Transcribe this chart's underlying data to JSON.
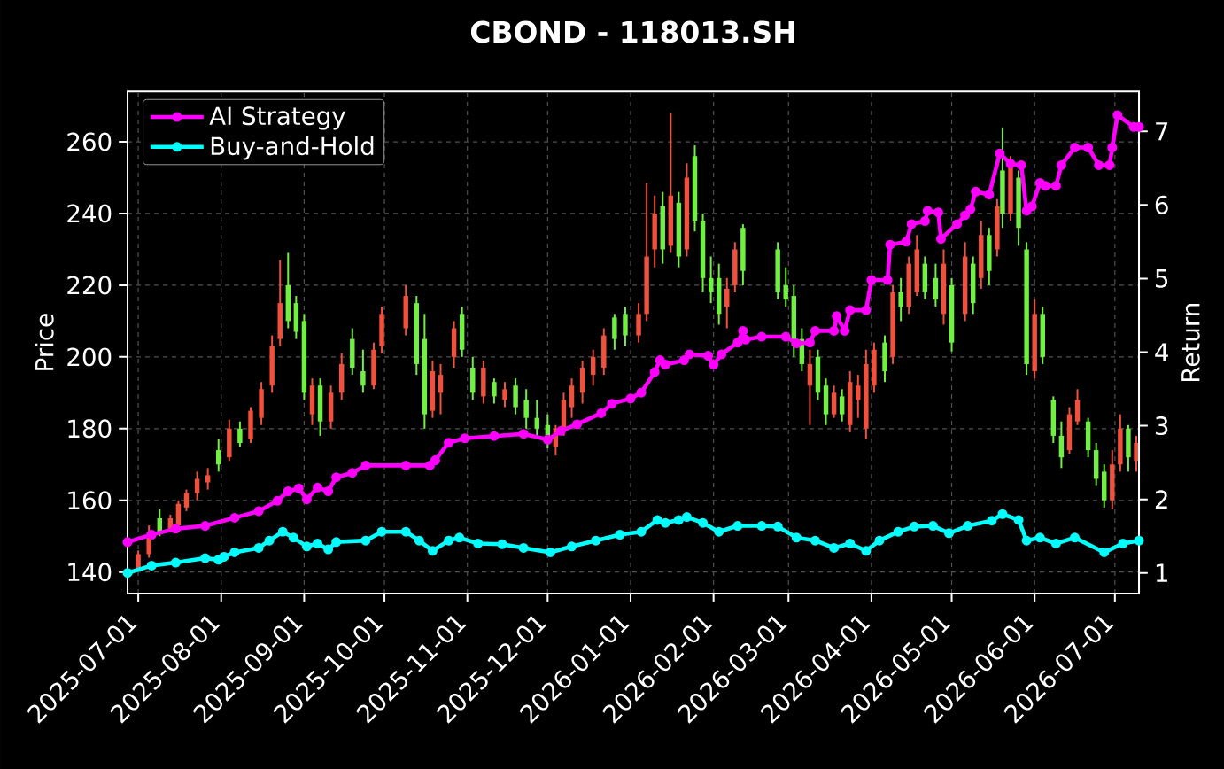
{
  "chart_data": {
    "type": "candlestick",
    "title": "CBOND - 118013.SH",
    "ylabel": "Price",
    "y2label": "Return",
    "x": [
      "2025-07-01",
      "2025-07-05",
      "2025-07-09",
      "2025-07-13",
      "2025-07-16",
      "2025-07-19",
      "2025-07-23",
      "2025-07-27",
      "2025-07-31",
      "2025-08-04",
      "2025-08-08",
      "2025-08-12",
      "2025-08-16",
      "2025-08-20",
      "2025-08-23",
      "2025-08-26",
      "2025-08-29",
      "2025-09-01",
      "2025-09-04",
      "2025-09-07",
      "2025-09-11",
      "2025-09-15",
      "2025-09-19",
      "2025-09-23",
      "2025-09-27",
      "2025-09-30",
      "2025-10-09",
      "2025-10-13",
      "2025-10-16",
      "2025-10-19",
      "2025-10-22",
      "2025-10-27",
      "2025-10-30",
      "2025-11-03",
      "2025-11-07",
      "2025-11-11",
      "2025-11-15",
      "2025-11-19",
      "2025-11-23",
      "2025-11-27",
      "2025-12-01",
      "2025-12-04",
      "2025-12-07",
      "2025-12-10",
      "2025-12-14",
      "2025-12-18",
      "2025-12-22",
      "2025-12-26",
      "2025-12-30",
      "2026-01-04",
      "2026-01-07",
      "2026-01-10",
      "2026-01-13",
      "2026-01-16",
      "2026-01-19",
      "2026-01-22",
      "2026-01-25",
      "2026-01-28",
      "2026-01-31",
      "2026-02-03",
      "2026-02-06",
      "2026-02-09",
      "2026-02-12",
      "2026-02-25",
      "2026-02-28",
      "2026-03-03",
      "2026-03-06",
      "2026-03-09",
      "2026-03-12",
      "2026-03-15",
      "2026-03-18",
      "2026-03-21",
      "2026-03-24",
      "2026-03-27",
      "2026-03-30",
      "2026-04-02",
      "2026-04-06",
      "2026-04-09",
      "2026-04-12",
      "2026-04-15",
      "2026-04-18",
      "2026-04-21",
      "2026-04-25",
      "2026-04-28",
      "2026-05-01",
      "2026-05-06",
      "2026-05-09",
      "2026-05-12",
      "2026-05-15",
      "2026-05-18",
      "2026-05-20",
      "2026-05-23",
      "2026-05-26",
      "2026-05-29",
      "2026-06-01",
      "2026-06-04",
      "2026-06-08",
      "2026-06-11",
      "2026-06-14",
      "2026-06-17",
      "2026-06-21",
      "2026-06-24",
      "2026-06-27",
      "2026-06-30",
      "2026-07-03",
      "2026-07-06",
      "2026-07-09"
    ],
    "ohlc": [
      [
        141,
        146,
        140.5,
        145
      ],
      [
        145,
        153,
        144,
        151
      ],
      [
        155,
        157.5,
        150,
        151
      ],
      [
        152,
        156,
        151,
        155
      ],
      [
        153,
        160,
        152,
        159
      ],
      [
        158,
        163,
        157,
        162
      ],
      [
        162,
        168,
        160,
        166
      ],
      [
        165,
        169,
        163,
        167
      ],
      [
        174,
        177,
        168,
        170
      ],
      [
        172,
        182.5,
        171,
        180
      ],
      [
        180,
        182,
        175,
        176
      ],
      [
        177,
        186,
        176,
        185
      ],
      [
        183,
        193,
        181,
        191
      ],
      [
        192,
        206,
        190,
        203
      ],
      [
        205,
        227,
        203,
        215
      ],
      [
        220,
        229,
        208,
        210
      ],
      [
        215,
        217,
        205,
        207
      ],
      [
        210,
        212,
        188,
        190
      ],
      [
        184,
        194,
        181,
        192
      ],
      [
        192,
        194,
        178,
        182
      ],
      [
        182,
        192,
        180,
        190
      ],
      [
        190,
        201,
        188,
        198
      ],
      [
        205,
        208,
        195,
        197
      ],
      [
        196,
        202,
        190,
        192
      ],
      [
        192,
        204,
        191,
        202
      ],
      [
        203,
        214,
        201,
        212
      ],
      [
        208,
        220,
        206,
        217
      ],
      [
        215,
        217,
        195,
        198
      ],
      [
        205,
        212,
        180,
        184
      ],
      [
        185,
        199,
        183,
        196
      ],
      [
        190,
        198,
        184,
        195
      ],
      [
        200,
        210,
        197,
        208
      ],
      [
        212,
        214,
        200,
        202
      ],
      [
        197,
        200,
        188,
        190
      ],
      [
        189,
        199,
        187,
        197
      ],
      [
        193,
        194,
        187,
        189
      ],
      [
        188,
        193,
        186,
        191
      ],
      [
        192,
        194,
        184,
        186
      ],
      [
        188,
        191,
        180,
        183
      ],
      [
        183,
        188,
        178,
        180
      ],
      [
        181,
        184,
        174.5,
        176
      ],
      [
        175,
        181,
        172.5,
        180
      ],
      [
        180,
        190,
        178,
        188
      ],
      [
        186,
        194,
        183,
        192
      ],
      [
        190,
        199,
        187,
        197
      ],
      [
        195,
        202,
        192,
        200
      ],
      [
        197,
        208,
        195,
        206
      ],
      [
        211,
        212,
        202,
        205
      ],
      [
        212,
        214,
        203,
        206
      ],
      [
        206,
        215,
        204,
        212
      ],
      [
        212,
        248.5,
        210,
        228
      ],
      [
        230,
        245,
        225,
        240
      ],
      [
        242,
        246,
        226,
        230
      ],
      [
        231,
        268,
        229,
        245
      ],
      [
        243,
        246,
        225,
        228
      ],
      [
        230,
        254,
        228,
        250
      ],
      [
        256,
        259,
        235,
        238
      ],
      [
        238,
        240,
        218,
        222
      ],
      [
        222,
        228,
        215,
        218
      ],
      [
        222,
        226,
        209,
        212
      ],
      [
        214,
        222,
        208,
        219
      ],
      [
        220,
        232,
        218,
        230
      ],
      [
        236,
        237,
        220,
        224
      ],
      [
        230,
        232,
        216,
        218
      ],
      [
        220,
        225,
        214,
        216
      ],
      [
        217,
        220,
        200,
        203
      ],
      [
        205,
        208,
        196,
        198
      ],
      [
        192,
        202,
        181,
        198
      ],
      [
        200,
        202,
        188,
        190
      ],
      [
        192,
        194,
        181,
        184
      ],
      [
        184,
        192,
        183,
        190
      ],
      [
        189,
        191,
        182,
        184
      ],
      [
        181,
        196,
        179,
        193
      ],
      [
        188,
        195,
        183,
        192
      ],
      [
        180,
        202,
        177,
        198
      ],
      [
        192,
        204,
        190,
        202
      ],
      [
        204,
        206,
        193,
        196
      ],
      [
        200,
        220,
        198,
        218
      ],
      [
        218,
        222,
        210,
        214
      ],
      [
        214,
        228,
        212,
        226
      ],
      [
        218,
        234,
        217,
        230
      ],
      [
        226,
        228,
        216,
        218
      ],
      [
        222,
        226,
        214,
        216
      ],
      [
        212,
        230,
        209,
        226
      ],
      [
        220,
        222,
        201.5,
        204
      ],
      [
        212,
        232,
        210,
        228
      ],
      [
        226,
        228,
        212,
        215
      ],
      [
        222,
        238,
        219,
        234
      ],
      [
        234,
        236,
        220,
        224
      ],
      [
        230,
        244,
        228,
        242
      ],
      [
        252,
        264,
        236,
        240
      ],
      [
        240,
        256,
        238,
        254
      ],
      [
        250,
        252,
        231,
        236
      ],
      [
        230,
        232,
        195,
        198
      ],
      [
        196,
        216,
        194,
        212
      ],
      [
        212,
        214,
        198,
        200
      ],
      [
        188,
        189,
        176,
        178
      ],
      [
        178,
        182,
        169,
        172
      ],
      [
        174,
        186,
        173,
        184
      ],
      [
        182,
        191,
        181,
        188
      ],
      [
        182,
        183,
        172,
        174
      ],
      [
        174,
        176,
        164,
        166
      ],
      [
        168,
        170,
        158,
        160
      ],
      [
        160,
        174,
        157.5,
        170
      ],
      [
        170,
        184,
        168,
        180
      ],
      [
        180,
        181,
        168,
        172
      ],
      [
        171,
        178,
        168,
        176
      ]
    ],
    "colors": [
      "#f0503c",
      "#f0503c",
      "#70f040",
      "#f0503c",
      "#f0503c",
      "#f0503c",
      "#f0503c",
      "#f0503c",
      "#70f040",
      "#f0503c",
      "#70f040",
      "#f0503c",
      "#f0503c",
      "#f0503c",
      "#f0503c",
      "#70f040",
      "#70f040",
      "#70f040",
      "#f0503c",
      "#70f040",
      "#f0503c",
      "#f0503c",
      "#70f040",
      "#70f040",
      "#f0503c",
      "#f0503c",
      "#f0503c",
      "#70f040",
      "#70f040",
      "#f0503c",
      "#f0503c",
      "#f0503c",
      "#70f040",
      "#70f040",
      "#f0503c",
      "#70f040",
      "#f0503c",
      "#70f040",
      "#70f040",
      "#70f040",
      "#70f040",
      "#f0503c",
      "#f0503c",
      "#f0503c",
      "#f0503c",
      "#f0503c",
      "#f0503c",
      "#70f040",
      "#70f040",
      "#f0503c",
      "#f0503c",
      "#f0503c",
      "#70f040",
      "#f0503c",
      "#70f040",
      "#f0503c",
      "#70f040",
      "#70f040",
      "#70f040",
      "#70f040",
      "#f0503c",
      "#f0503c",
      "#70f040",
      "#70f040",
      "#70f040",
      "#70f040",
      "#70f040",
      "#f0503c",
      "#70f040",
      "#70f040",
      "#f0503c",
      "#70f040",
      "#f0503c",
      "#f0503c",
      "#f0503c",
      "#f0503c",
      "#70f040",
      "#f0503c",
      "#70f040",
      "#f0503c",
      "#f0503c",
      "#70f040",
      "#70f040",
      "#f0503c",
      "#70f040",
      "#f0503c",
      "#70f040",
      "#f0503c",
      "#70f040",
      "#f0503c",
      "#70f040",
      "#f0503c",
      "#70f040",
      "#70f040",
      "#f0503c",
      "#70f040",
      "#70f040",
      "#70f040",
      "#f0503c",
      "#f0503c",
      "#70f040",
      "#70f040",
      "#70f040",
      "#f0503c",
      "#f0503c",
      "#70f040",
      "#f0503c"
    ],
    "series": [
      {
        "name": "AI Strategy",
        "type": "line",
        "axis": "y2",
        "color": "#ff00ff",
        "x": [
          "2025-06-27",
          "2025-07-06",
          "2025-07-15",
          "2025-07-26",
          "2025-08-06",
          "2025-08-15",
          "2025-08-22",
          "2025-08-26",
          "2025-08-30",
          "2025-09-02",
          "2025-09-06",
          "2025-09-10",
          "2025-09-13",
          "2025-09-19",
          "2025-09-24",
          "2025-10-09",
          "2025-10-18",
          "2025-10-20",
          "2025-10-25",
          "2025-10-31",
          "2025-11-11",
          "2025-11-22",
          "2025-12-01",
          "2025-12-06",
          "2025-12-12",
          "2025-12-21",
          "2025-12-25",
          "2026-01-01",
          "2026-01-05",
          "2026-01-10",
          "2026-01-12",
          "2026-01-14",
          "2026-01-21",
          "2026-01-23",
          "2026-01-30",
          "2026-02-01",
          "2026-02-04",
          "2026-02-10",
          "2026-02-12",
          "2026-02-13",
          "2026-02-19",
          "2026-02-28",
          "2026-03-04",
          "2026-03-09",
          "2026-03-11",
          "2026-03-18",
          "2026-03-19",
          "2026-03-22",
          "2026-03-24",
          "2026-03-30",
          "2026-04-01",
          "2026-04-07",
          "2026-04-08",
          "2026-04-14",
          "2026-04-16",
          "2026-04-21",
          "2026-04-22",
          "2026-04-26",
          "2026-04-27",
          "2026-05-03",
          "2026-05-06",
          "2026-05-08",
          "2026-05-10",
          "2026-05-15",
          "2026-05-19",
          "2026-05-23",
          "2026-05-27",
          "2026-05-29",
          "2026-05-31",
          "2026-06-03",
          "2026-06-05",
          "2026-06-09",
          "2026-06-11",
          "2026-06-16",
          "2026-06-21",
          "2026-06-25",
          "2026-06-29",
          "2026-06-30",
          "2026-07-02",
          "2026-07-08",
          "2026-07-10"
        ],
        "values": [
          1.42,
          1.52,
          1.6,
          1.64,
          1.75,
          1.84,
          1.98,
          2.11,
          2.15,
          2.0,
          2.16,
          2.11,
          2.3,
          2.36,
          2.46,
          2.46,
          2.46,
          2.53,
          2.77,
          2.83,
          2.86,
          2.89,
          2.81,
          2.93,
          3.02,
          3.17,
          3.3,
          3.37,
          3.45,
          3.73,
          3.89,
          3.83,
          3.89,
          3.97,
          3.95,
          3.83,
          3.97,
          4.13,
          4.29,
          4.17,
          4.21,
          4.21,
          4.12,
          4.13,
          4.29,
          4.29,
          4.49,
          4.29,
          4.57,
          4.57,
          4.98,
          4.98,
          5.46,
          5.5,
          5.74,
          5.78,
          5.92,
          5.9,
          5.54,
          5.74,
          5.86,
          5.94,
          6.18,
          6.14,
          6.7,
          6.56,
          6.54,
          5.92,
          5.98,
          6.3,
          6.26,
          6.26,
          6.54,
          6.78,
          6.78,
          6.54,
          6.54,
          6.78,
          7.22,
          7.06,
          7.06
        ]
      },
      {
        "name": "Buy-and-Hold",
        "type": "line",
        "axis": "y2",
        "color": "#00ffff",
        "x": [
          "2025-06-27",
          "2025-07-06",
          "2025-07-15",
          "2025-07-26",
          "2025-07-31",
          "2025-08-02",
          "2025-08-06",
          "2025-08-15",
          "2025-08-19",
          "2025-08-24",
          "2025-08-28",
          "2025-09-02",
          "2025-09-06",
          "2025-09-10",
          "2025-09-13",
          "2025-09-24",
          "2025-09-30",
          "2025-10-09",
          "2025-10-14",
          "2025-10-19",
          "2025-10-25",
          "2025-10-29",
          "2025-11-05",
          "2025-11-14",
          "2025-11-22",
          "2025-12-02",
          "2025-12-10",
          "2025-12-19",
          "2025-12-28",
          "2026-01-05",
          "2026-01-11",
          "2026-01-14",
          "2026-01-19",
          "2026-01-22",
          "2026-01-28",
          "2026-02-03",
          "2026-02-10",
          "2026-02-19",
          "2026-02-25",
          "2026-03-04",
          "2026-03-11",
          "2026-03-18",
          "2026-03-24",
          "2026-03-30",
          "2026-04-04",
          "2026-04-11",
          "2026-04-17",
          "2026-04-24",
          "2026-04-30",
          "2026-05-07",
          "2026-05-16",
          "2026-05-20",
          "2026-05-26",
          "2026-05-29",
          "2026-06-03",
          "2026-06-09",
          "2026-06-16",
          "2026-06-27",
          "2026-07-04",
          "2026-07-10"
        ],
        "values": [
          1.0,
          1.1,
          1.14,
          1.2,
          1.18,
          1.22,
          1.28,
          1.34,
          1.44,
          1.56,
          1.48,
          1.36,
          1.4,
          1.32,
          1.42,
          1.44,
          1.56,
          1.56,
          1.44,
          1.3,
          1.44,
          1.48,
          1.4,
          1.39,
          1.34,
          1.28,
          1.36,
          1.44,
          1.52,
          1.56,
          1.72,
          1.68,
          1.72,
          1.76,
          1.68,
          1.56,
          1.64,
          1.64,
          1.63,
          1.48,
          1.44,
          1.34,
          1.4,
          1.3,
          1.44,
          1.56,
          1.63,
          1.64,
          1.54,
          1.64,
          1.71,
          1.8,
          1.72,
          1.44,
          1.48,
          1.4,
          1.48,
          1.28,
          1.4,
          1.44
        ]
      }
    ],
    "xlim": [
      "2025-06-27",
      "2026-07-10"
    ],
    "xticks": [
      "2025-07-01",
      "2025-08-01",
      "2025-09-01",
      "2025-10-01",
      "2025-11-01",
      "2025-12-01",
      "2026-01-01",
      "2026-02-01",
      "2026-03-01",
      "2026-04-01",
      "2026-05-01",
      "2026-06-01",
      "2026-07-01"
    ],
    "ylim": [
      134,
      274
    ],
    "yticks": [
      140,
      160,
      180,
      200,
      220,
      240,
      260
    ],
    "y2lim": [
      0.72,
      7.54
    ],
    "y2ticks": [
      1,
      2,
      3,
      4,
      5,
      6,
      7
    ],
    "grid": true,
    "legend": "top left",
    "marker": "circle"
  }
}
